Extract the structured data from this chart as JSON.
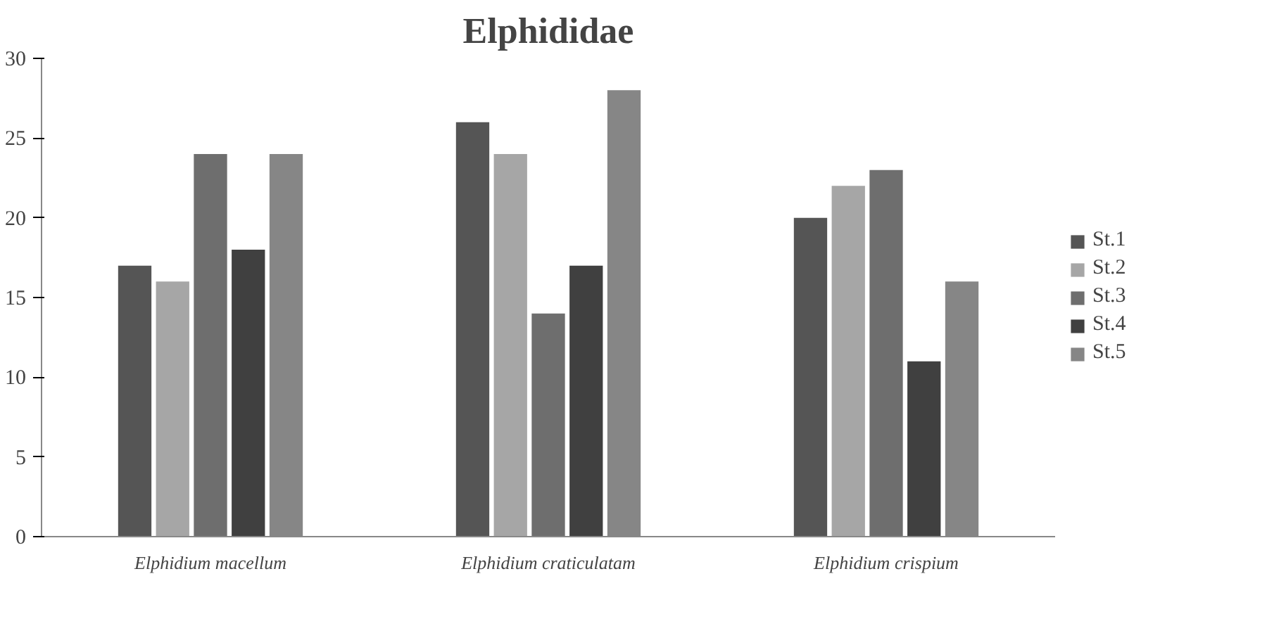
{
  "chart_data": {
    "type": "bar",
    "title": "Elphididae",
    "categories": [
      "Elphidium macellum",
      "Elphidium craticulatam",
      "Elphidium crispium"
    ],
    "series": [
      {
        "name": "St.1",
        "color": "#555555",
        "values": [
          17,
          26,
          20
        ]
      },
      {
        "name": "St.2",
        "color": "#a6a6a6",
        "values": [
          16,
          24,
          22
        ]
      },
      {
        "name": "St.3",
        "color": "#6e6e6e",
        "values": [
          24,
          14,
          23
        ]
      },
      {
        "name": "St.4",
        "color": "#404040",
        "values": [
          18,
          17,
          11
        ]
      },
      {
        "name": "St.5",
        "color": "#868686",
        "values": [
          24,
          28,
          16
        ]
      }
    ],
    "ylim": [
      0,
      30
    ],
    "yticks": [
      0,
      5,
      10,
      15,
      20,
      25,
      30
    ],
    "grid": false,
    "legend": "right"
  }
}
